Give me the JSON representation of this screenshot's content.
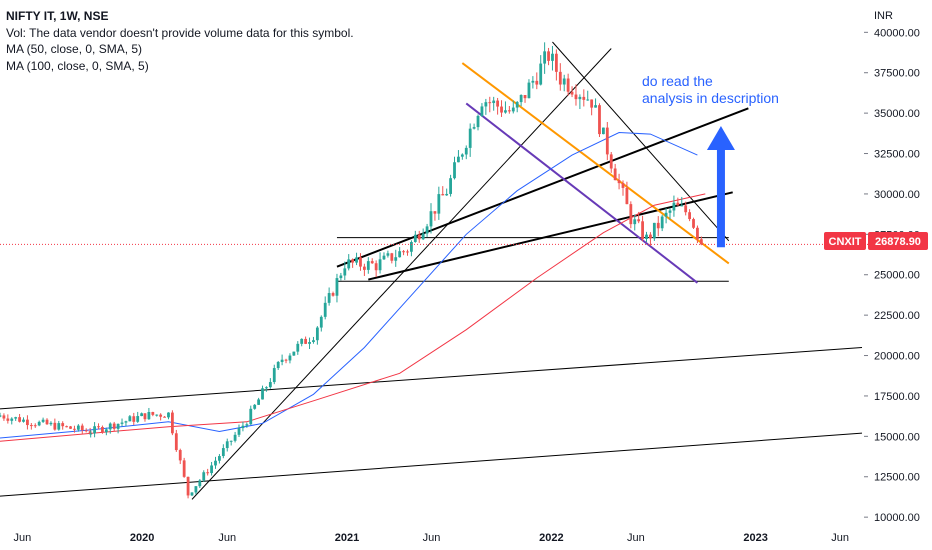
{
  "legend": {
    "symbol_line": "NIFTY IT, 1W, NSE",
    "vol_line": "Vol: The data vendor doesn't provide volume data for this symbol.",
    "ma50_line": "MA (50, close, 0, SMA, 5)",
    "ma100_line": "MA (100, close, 0, SMA, 5)"
  },
  "annotation": {
    "line1": "do read the",
    "line2": "analysis in description"
  },
  "price_tag": {
    "symbol": "CNXIT",
    "price": "26878.90"
  },
  "chart_data": {
    "type": "candlestick",
    "title": "NIFTY IT, 1W, NSE",
    "ylabel": "INR",
    "currency_label": "INR",
    "ylim": [
      9700,
      42000
    ],
    "y_ticks": [
      "40000.00",
      "37500.00",
      "35000.00",
      "32500.00",
      "30000.00",
      "27500.00",
      "25000.00",
      "22500.00",
      "20000.00",
      "17500.00",
      "15000.00",
      "12500.00",
      "10000.00"
    ],
    "y_tick_values": [
      40000,
      37500,
      35000,
      32500,
      30000,
      27500,
      25000,
      22500,
      20000,
      17500,
      15000,
      12500,
      10000
    ],
    "x_range": [
      "2019-04-22",
      "2023-07-10"
    ],
    "x_ticks": [
      {
        "label": "Jun",
        "date": "2019-06-01"
      },
      {
        "label": "2020",
        "date": "2020-01-01"
      },
      {
        "label": "Jun",
        "date": "2020-06-01"
      },
      {
        "label": "2021",
        "date": "2021-01-01"
      },
      {
        "label": "Jun",
        "date": "2021-06-01"
      },
      {
        "label": "2022",
        "date": "2022-01-01"
      },
      {
        "label": "Jun",
        "date": "2022-06-01"
      },
      {
        "label": "2023",
        "date": "2023-01-01"
      },
      {
        "label": "Jun",
        "date": "2023-06-01"
      }
    ],
    "last_price": 26878.9,
    "series": [
      {
        "name": "Price",
        "color_up": "#26a69a",
        "color_down": "#ef5350",
        "anchors": [
          {
            "date": "2019-04-22",
            "close": 16300
          },
          {
            "date": "2019-07-01",
            "close": 15800
          },
          {
            "date": "2019-10-01",
            "close": 15300
          },
          {
            "date": "2020-01-06",
            "close": 16300
          },
          {
            "date": "2020-02-17",
            "close": 16400
          },
          {
            "date": "2020-03-23",
            "close": 11400
          },
          {
            "date": "2020-05-04",
            "close": 13200
          },
          {
            "date": "2020-07-06",
            "close": 16000
          },
          {
            "date": "2020-09-07",
            "close": 19800
          },
          {
            "date": "2020-11-02",
            "close": 21300
          },
          {
            "date": "2020-12-28",
            "close": 25700
          },
          {
            "date": "2021-02-22",
            "close": 25600
          },
          {
            "date": "2021-04-19",
            "close": 26600
          },
          {
            "date": "2021-06-28",
            "close": 30200
          },
          {
            "date": "2021-08-30",
            "close": 35900
          },
          {
            "date": "2021-10-25",
            "close": 35000
          },
          {
            "date": "2021-12-27",
            "close": 38600
          },
          {
            "date": "2022-01-17",
            "close": 37200
          },
          {
            "date": "2022-03-14",
            "close": 35800
          },
          {
            "date": "2022-04-18",
            "close": 32000
          },
          {
            "date": "2022-05-23",
            "close": 28500
          },
          {
            "date": "2022-06-20",
            "close": 27200
          },
          {
            "date": "2022-08-08",
            "close": 29200
          },
          {
            "date": "2022-09-05",
            "close": 28800
          },
          {
            "date": "2022-09-26",
            "close": 26878.9
          }
        ]
      },
      {
        "name": "MA (50, close, 0, SMA, 5)",
        "color": "#2962ff",
        "points": [
          {
            "date": "2019-04-22",
            "value": 14900
          },
          {
            "date": "2019-10-01",
            "value": 15400
          },
          {
            "date": "2020-02-17",
            "value": 15900
          },
          {
            "date": "2020-05-18",
            "value": 15300
          },
          {
            "date": "2020-08-03",
            "value": 15800
          },
          {
            "date": "2020-11-02",
            "value": 17600
          },
          {
            "date": "2021-02-01",
            "value": 20500
          },
          {
            "date": "2021-05-03",
            "value": 24000
          },
          {
            "date": "2021-08-02",
            "value": 27500
          },
          {
            "date": "2021-11-01",
            "value": 30200
          },
          {
            "date": "2022-02-07",
            "value": 32400
          },
          {
            "date": "2022-05-02",
            "value": 33800
          },
          {
            "date": "2022-06-27",
            "value": 33700
          },
          {
            "date": "2022-09-19",
            "value": 32400
          }
        ]
      },
      {
        "name": "MA (100, close, 0, SMA, 5)",
        "color": "#f23645",
        "points": [
          {
            "date": "2019-04-22",
            "value": 14700
          },
          {
            "date": "2020-02-17",
            "value": 15600
          },
          {
            "date": "2020-07-06",
            "value": 15900
          },
          {
            "date": "2020-11-02",
            "value": 17200
          },
          {
            "date": "2021-04-05",
            "value": 18900
          },
          {
            "date": "2021-08-02",
            "value": 21600
          },
          {
            "date": "2021-12-06",
            "value": 24800
          },
          {
            "date": "2022-04-04",
            "value": 27600
          },
          {
            "date": "2022-07-04",
            "value": 29300
          },
          {
            "date": "2022-10-03",
            "value": 30000
          }
        ]
      }
    ],
    "trendlines": [
      {
        "color": "#000000",
        "width": 1,
        "points": [
          {
            "date": "2019-04-22",
            "value": 16700
          },
          {
            "date": "2023-07-10",
            "value": 20500
          }
        ]
      },
      {
        "color": "#000000",
        "width": 1,
        "points": [
          {
            "date": "2019-04-22",
            "value": 11300
          },
          {
            "date": "2023-07-10",
            "value": 15200
          }
        ]
      },
      {
        "color": "#000000",
        "width": 1,
        "points": [
          {
            "date": "2020-03-30",
            "value": 11100
          },
          {
            "date": "2022-04-18",
            "value": 39000
          }
        ]
      },
      {
        "color": "#000000",
        "width": 1,
        "points": [
          {
            "date": "2022-01-03",
            "value": 39400
          },
          {
            "date": "2022-11-14",
            "value": 27100
          }
        ]
      },
      {
        "color": "#000000",
        "width": 2,
        "points": [
          {
            "date": "2020-12-14",
            "value": 25500
          },
          {
            "date": "2022-12-19",
            "value": 35300
          }
        ]
      },
      {
        "color": "#000000",
        "width": 2,
        "points": [
          {
            "date": "2021-02-08",
            "value": 24700
          },
          {
            "date": "2022-11-21",
            "value": 30100
          }
        ]
      },
      {
        "color": "#000000",
        "width": 1,
        "points": [
          {
            "date": "2020-12-14",
            "value": 24600
          },
          {
            "date": "2022-11-14",
            "value": 24600
          }
        ]
      },
      {
        "color": "#000000",
        "width": 1,
        "points": [
          {
            "date": "2020-12-14",
            "value": 27300
          },
          {
            "date": "2022-11-14",
            "value": 27300
          }
        ]
      },
      {
        "color": "#ff9800",
        "width": 2,
        "points": [
          {
            "date": "2021-07-26",
            "value": 38100
          },
          {
            "date": "2022-11-14",
            "value": 25700
          }
        ]
      },
      {
        "color": "#673ab7",
        "width": 2,
        "points": [
          {
            "date": "2021-08-02",
            "value": 35600
          },
          {
            "date": "2022-09-19",
            "value": 24500
          }
        ]
      }
    ],
    "arrow": {
      "color": "#2962ff",
      "from": {
        "date": "2022-10-31",
        "value": 26700
      },
      "to": {
        "date": "2022-10-31",
        "value": 34200
      }
    },
    "grid": false,
    "legend_position": "top-left"
  }
}
